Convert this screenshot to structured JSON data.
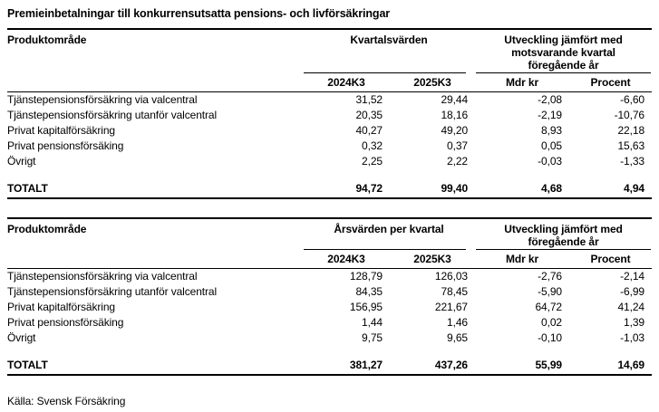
{
  "title": "Premieinbetalningar till konkurrensutsatta pensions- och livförsäkringar",
  "source": "Källa: Svensk Försäkring",
  "tables": [
    {
      "product_col_header": "Produktområde",
      "group1": "Kvartalsvärden",
      "group2": "Utveckling jämfört med\nmotsvarande kvartal\nföregående år",
      "columns": [
        "2024K3",
        "2025K3",
        "Mdr kr",
        "Procent"
      ],
      "rows": [
        {
          "label": "Tjänstepensionsförsäkring via valcentral",
          "values": [
            "31,52",
            "29,44",
            "-2,08",
            "-6,60"
          ]
        },
        {
          "label": "Tjänstepensionsförsäkring utanför valcentral",
          "values": [
            "20,35",
            "18,16",
            "-2,19",
            "-10,76"
          ]
        },
        {
          "label": "Privat kapitalförsäkring",
          "values": [
            "40,27",
            "49,20",
            "8,93",
            "22,18"
          ]
        },
        {
          "label": "Privat pensionsförsäking",
          "values": [
            "0,32",
            "0,37",
            "0,05",
            "15,63"
          ]
        },
        {
          "label": "Övrigt",
          "values": [
            "2,25",
            "2,22",
            "-0,03",
            "-1,33"
          ]
        }
      ],
      "total": {
        "label": "TOTALT",
        "values": [
          "94,72",
          "99,40",
          "4,68",
          "4,94"
        ]
      }
    },
    {
      "product_col_header": "Produktområde",
      "group1": "Årsvärden per kvartal",
      "group2": "Utveckling jämfört med\nföregående år",
      "columns": [
        "2024K3",
        "2025K3",
        "Mdr kr",
        "Procent"
      ],
      "rows": [
        {
          "label": "Tjänstepensionsförsäkring via valcentral",
          "values": [
            "128,79",
            "126,03",
            "-2,76",
            "-2,14"
          ]
        },
        {
          "label": "Tjänstepensionsförsäkring utanför valcentral",
          "values": [
            "84,35",
            "78,45",
            "-5,90",
            "-6,99"
          ]
        },
        {
          "label": "Privat kapitalförsäkring",
          "values": [
            "156,95",
            "221,67",
            "64,72",
            "41,24"
          ]
        },
        {
          "label": "Privat pensionsförsäking",
          "values": [
            "1,44",
            "1,46",
            "0,02",
            "1,39"
          ]
        },
        {
          "label": "Övrigt",
          "values": [
            "9,75",
            "9,65",
            "-0,10",
            "-1,03"
          ]
        }
      ],
      "total": {
        "label": "TOTALT",
        "values": [
          "381,27",
          "437,26",
          "55,99",
          "14,69"
        ]
      }
    }
  ]
}
